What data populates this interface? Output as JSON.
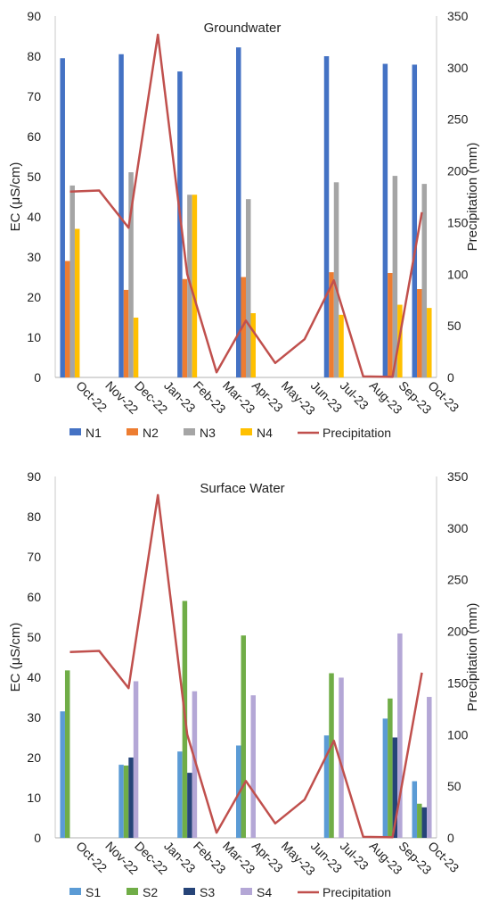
{
  "chart_data": [
    {
      "type": "bar",
      "title": "Groundwater",
      "ylabel": "EC (μS/cm)",
      "y2label": "Precipitation (mm)",
      "ylim": [
        0,
        90
      ],
      "y2lim": [
        0,
        350
      ],
      "yticks": [
        "0",
        "10",
        "20",
        "30",
        "40",
        "50",
        "60",
        "70",
        "80",
        "90"
      ],
      "y2ticks": [
        "0",
        "50",
        "100",
        "150",
        "200",
        "250",
        "300",
        "350"
      ],
      "categories": [
        "Oct-22",
        "Nov-22",
        "Dec-22",
        "Jan-23",
        "Feb-23",
        "Mar-23",
        "Apr-23",
        "May-23",
        "Jun-23",
        "Jul-23",
        "Aug-23",
        "Sep-23",
        "Oct-23"
      ],
      "series": [
        {
          "name": "N1",
          "color": "#4472C4",
          "values": [
            79.5,
            null,
            80.5,
            null,
            76.2,
            null,
            82.2,
            null,
            null,
            80,
            null,
            78.1,
            77.9
          ]
        },
        {
          "name": "N2",
          "color": "#ED7D31",
          "values": [
            29,
            null,
            21.8,
            null,
            24.5,
            null,
            25,
            null,
            null,
            26.2,
            null,
            26,
            22
          ]
        },
        {
          "name": "N3",
          "color": "#A5A5A5",
          "values": [
            47.8,
            null,
            51.1,
            null,
            45.5,
            null,
            44.4,
            null,
            null,
            48.6,
            null,
            50.2,
            48.2
          ]
        },
        {
          "name": "N4",
          "color": "#FFC000",
          "values": [
            37,
            null,
            14.9,
            null,
            45.5,
            null,
            16,
            null,
            null,
            15.6,
            null,
            18.1,
            17.3
          ]
        }
      ],
      "line_series": {
        "name": "Precipitation",
        "color": "#C0504D",
        "axis": "right",
        "values": [
          180,
          181,
          145,
          332,
          100,
          5,
          55,
          14,
          37,
          94,
          1,
          0.5,
          160
        ]
      },
      "legend_position": "bottom"
    },
    {
      "type": "bar",
      "title": "Surface Water",
      "ylabel": "EC (μS/cm)",
      "y2label": "Precipitation (mm)",
      "ylim": [
        0,
        90
      ],
      "y2lim": [
        0,
        350
      ],
      "yticks": [
        "0",
        "10",
        "20",
        "30",
        "40",
        "50",
        "60",
        "70",
        "80",
        "90"
      ],
      "y2ticks": [
        "0",
        "50",
        "100",
        "150",
        "200",
        "250",
        "300",
        "350"
      ],
      "categories": [
        "Oct-22",
        "Nov-22",
        "Dec-22",
        "Jan-23",
        "Feb-23",
        "Mar-23",
        "Apr-23",
        "May-23",
        "Jun-23",
        "Jul-23",
        "Aug-23",
        "Sep-23",
        "Oct-23"
      ],
      "series": [
        {
          "name": "S1",
          "color": "#5B9BD5",
          "values": [
            31.5,
            null,
            18.2,
            null,
            21.5,
            null,
            23,
            null,
            null,
            25.5,
            null,
            29.7,
            14.1
          ]
        },
        {
          "name": "S2",
          "color": "#70AD47",
          "values": [
            41.7,
            null,
            18,
            null,
            59,
            null,
            50.4,
            null,
            null,
            41,
            null,
            34.7,
            8.5
          ]
        },
        {
          "name": "S3",
          "color": "#264478",
          "values": [
            null,
            null,
            20,
            null,
            16.2,
            null,
            null,
            null,
            null,
            null,
            null,
            25,
            7.6
          ]
        },
        {
          "name": "S4",
          "color": "#B4A7D6",
          "values": [
            null,
            null,
            39,
            null,
            36.5,
            null,
            35.5,
            null,
            null,
            39.9,
            null,
            50.9,
            35.1
          ]
        }
      ],
      "line_series": {
        "name": "Precipitation",
        "color": "#C0504D",
        "axis": "right",
        "values": [
          180,
          181,
          145,
          332,
          100,
          5,
          55,
          14,
          37,
          94,
          1,
          0.5,
          160
        ]
      },
      "legend_position": "bottom"
    }
  ]
}
